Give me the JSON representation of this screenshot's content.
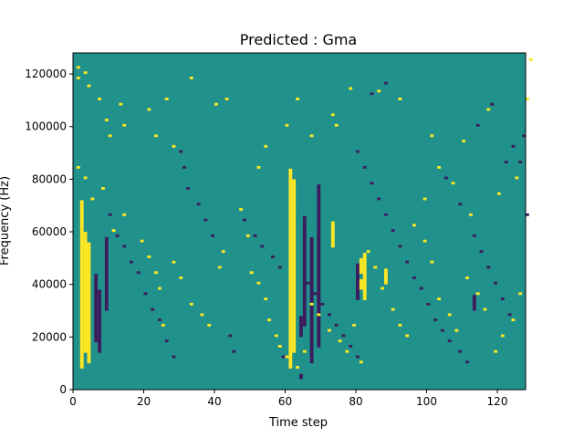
{
  "chart_data": {
    "type": "heatmap",
    "title": "Predicted : Gma",
    "xlabel": "Time step",
    "ylabel": "Frequency (Hz)",
    "xlim": [
      0,
      128
    ],
    "ylim": [
      0,
      128000
    ],
    "x_ticks": [
      0,
      20,
      40,
      60,
      80,
      100,
      120
    ],
    "y_ticks": [
      0,
      20000,
      40000,
      60000,
      80000,
      100000,
      120000
    ],
    "x_tick_labels": [
      "0",
      "20",
      "40",
      "60",
      "80",
      "100",
      "120"
    ],
    "y_tick_labels": [
      "0",
      "20000",
      "40000",
      "60000",
      "80000",
      "100000",
      "120000"
    ],
    "grid": false,
    "colormap": {
      "background_value": 0,
      "levels": [
        {
          "value": -1,
          "color": "#3b1d5e"
        },
        {
          "value": 0,
          "color": "#21918c"
        },
        {
          "value": 1,
          "color": "#fde725"
        }
      ]
    },
    "cell_size": [
      1,
      1000
    ],
    "cells_high": [
      [
        1,
        122000
      ],
      [
        1,
        118000
      ],
      [
        3,
        120000
      ],
      [
        4,
        115000
      ],
      [
        7,
        110000
      ],
      [
        9,
        102000
      ],
      [
        10,
        96000
      ],
      [
        13,
        108000
      ],
      [
        14,
        100000
      ],
      [
        21,
        106000
      ],
      [
        23,
        96000
      ],
      [
        26,
        110000
      ],
      [
        28,
        92000
      ],
      [
        33,
        118000
      ],
      [
        40,
        108000
      ],
      [
        43,
        110000
      ],
      [
        52,
        84000
      ],
      [
        54,
        92000
      ],
      [
        60,
        100000
      ],
      [
        63,
        110000
      ],
      [
        67,
        96000
      ],
      [
        73,
        104000
      ],
      [
        74,
        100000
      ],
      [
        78,
        114000
      ],
      [
        86,
        113000
      ],
      [
        92,
        110000
      ],
      [
        101,
        96000
      ],
      [
        110,
        94000
      ],
      [
        117,
        106000
      ],
      [
        128,
        110000
      ],
      [
        129,
        125000
      ],
      [
        1,
        84000
      ],
      [
        3,
        80000
      ],
      [
        5,
        72000
      ],
      [
        8,
        76000
      ],
      [
        11,
        60000
      ],
      [
        14,
        66000
      ],
      [
        19,
        56000
      ],
      [
        21,
        50000
      ],
      [
        23,
        44000
      ],
      [
        24,
        38000
      ],
      [
        25,
        24000
      ],
      [
        28,
        48000
      ],
      [
        30,
        42000
      ],
      [
        33,
        32000
      ],
      [
        36,
        28000
      ],
      [
        38,
        24000
      ],
      [
        41,
        46000
      ],
      [
        42,
        52000
      ],
      [
        47,
        68000
      ],
      [
        49,
        58000
      ],
      [
        50,
        44000
      ],
      [
        52,
        40000
      ],
      [
        54,
        34000
      ],
      [
        55,
        26000
      ],
      [
        57,
        20000
      ],
      [
        58,
        16000
      ],
      [
        60,
        12000
      ],
      [
        63,
        8000
      ],
      [
        65,
        14000
      ],
      [
        67,
        32000
      ],
      [
        69,
        28000
      ],
      [
        72,
        22000
      ],
      [
        75,
        18000
      ],
      [
        77,
        14000
      ],
      [
        79,
        24000
      ],
      [
        81,
        10000
      ],
      [
        83,
        52000
      ],
      [
        85,
        46000
      ],
      [
        87,
        38000
      ],
      [
        90,
        30000
      ],
      [
        92,
        24000
      ],
      [
        94,
        20000
      ],
      [
        96,
        62000
      ],
      [
        99,
        56000
      ],
      [
        101,
        48000
      ],
      [
        103,
        34000
      ],
      [
        106,
        28000
      ],
      [
        108,
        22000
      ],
      [
        111,
        42000
      ],
      [
        114,
        36000
      ],
      [
        116,
        30000
      ],
      [
        119,
        14000
      ],
      [
        121,
        20000
      ],
      [
        124,
        26000
      ],
      [
        126,
        36000
      ],
      [
        99,
        72000
      ],
      [
        103,
        84000
      ],
      [
        107,
        78000
      ],
      [
        112,
        66000
      ],
      [
        120,
        74000
      ],
      [
        125,
        80000
      ]
    ],
    "cells_low": [
      [
        10,
        66000
      ],
      [
        12,
        58000
      ],
      [
        14,
        54000
      ],
      [
        16,
        48000
      ],
      [
        18,
        44000
      ],
      [
        20,
        36000
      ],
      [
        22,
        30000
      ],
      [
        24,
        26000
      ],
      [
        26,
        18000
      ],
      [
        28,
        12000
      ],
      [
        30,
        90000
      ],
      [
        31,
        84000
      ],
      [
        32,
        76000
      ],
      [
        35,
        70000
      ],
      [
        37,
        64000
      ],
      [
        39,
        58000
      ],
      [
        44,
        20000
      ],
      [
        45,
        14000
      ],
      [
        48,
        64000
      ],
      [
        51,
        58000
      ],
      [
        53,
        54000
      ],
      [
        56,
        50000
      ],
      [
        58,
        46000
      ],
      [
        59,
        12000
      ],
      [
        66,
        40000
      ],
      [
        68,
        36000
      ],
      [
        70,
        32000
      ],
      [
        72,
        28000
      ],
      [
        74,
        24000
      ],
      [
        76,
        20000
      ],
      [
        78,
        16000
      ],
      [
        80,
        12000
      ],
      [
        82,
        84000
      ],
      [
        84,
        78000
      ],
      [
        86,
        72000
      ],
      [
        88,
        66000
      ],
      [
        90,
        60000
      ],
      [
        92,
        54000
      ],
      [
        94,
        48000
      ],
      [
        96,
        42000
      ],
      [
        98,
        38000
      ],
      [
        100,
        32000
      ],
      [
        102,
        26000
      ],
      [
        104,
        22000
      ],
      [
        106,
        18000
      ],
      [
        109,
        14000
      ],
      [
        111,
        10000
      ],
      [
        113,
        58000
      ],
      [
        115,
        52000
      ],
      [
        117,
        46000
      ],
      [
        119,
        40000
      ],
      [
        121,
        34000
      ],
      [
        123,
        28000
      ],
      [
        124,
        92000
      ],
      [
        126,
        86000
      ],
      [
        128,
        66000
      ],
      [
        105,
        80000
      ],
      [
        109,
        70000
      ],
      [
        114,
        100000
      ],
      [
        118,
        108000
      ],
      [
        122,
        86000
      ],
      [
        127,
        96000
      ],
      [
        80,
        90000
      ],
      [
        84,
        112000
      ],
      [
        88,
        116000
      ]
    ],
    "columns": [
      {
        "x": 2,
        "level": 1,
        "ranges": [
          [
            8000,
            72000
          ]
        ]
      },
      {
        "x": 3,
        "level": 1,
        "ranges": [
          [
            14000,
            60000
          ]
        ]
      },
      {
        "x": 4,
        "level": 1,
        "ranges": [
          [
            10000,
            56000
          ]
        ]
      },
      {
        "x": 6,
        "level": -1,
        "ranges": [
          [
            18000,
            44000
          ]
        ]
      },
      {
        "x": 7,
        "level": -1,
        "ranges": [
          [
            14000,
            38000
          ]
        ]
      },
      {
        "x": 9,
        "level": -1,
        "ranges": [
          [
            30000,
            58000
          ]
        ]
      },
      {
        "x": 61,
        "level": 1,
        "ranges": [
          [
            8000,
            84000
          ]
        ]
      },
      {
        "x": 62,
        "level": 1,
        "ranges": [
          [
            14000,
            80000
          ]
        ]
      },
      {
        "x": 64,
        "level": -1,
        "ranges": [
          [
            4000,
            6000
          ],
          [
            20000,
            28000
          ]
        ]
      },
      {
        "x": 65,
        "level": -1,
        "ranges": [
          [
            24000,
            66000
          ]
        ]
      },
      {
        "x": 67,
        "level": -1,
        "ranges": [
          [
            10000,
            58000
          ]
        ]
      },
      {
        "x": 69,
        "level": -1,
        "ranges": [
          [
            16000,
            78000
          ]
        ]
      },
      {
        "x": 73,
        "level": 1,
        "ranges": [
          [
            54000,
            64000
          ]
        ]
      },
      {
        "x": 80,
        "level": -1,
        "ranges": [
          [
            34000,
            48000
          ]
        ]
      },
      {
        "x": 81,
        "level": 1,
        "ranges": [
          [
            44000,
            50000
          ],
          [
            38000,
            42000
          ]
        ]
      },
      {
        "x": 82,
        "level": 1,
        "ranges": [
          [
            34000,
            52000
          ]
        ]
      },
      {
        "x": 88,
        "level": 1,
        "ranges": [
          [
            40000,
            46000
          ]
        ]
      },
      {
        "x": 113,
        "level": -1,
        "ranges": [
          [
            30000,
            36000
          ]
        ]
      }
    ]
  }
}
